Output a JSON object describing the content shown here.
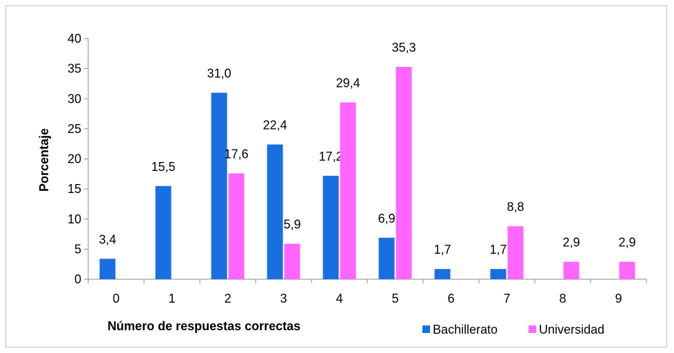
{
  "chart_data": {
    "type": "bar",
    "categories": [
      "0",
      "1",
      "2",
      "3",
      "4",
      "5",
      "6",
      "7",
      "8",
      "9"
    ],
    "series": [
      {
        "name": "Bachillerato",
        "color": "#1a6fe0",
        "values": [
          3.4,
          15.5,
          31.0,
          22.4,
          17.2,
          6.9,
          1.7,
          1.7,
          0,
          0
        ],
        "labels": [
          "3,4",
          "15,5",
          "31,0",
          "22,4",
          "17,2",
          "6,9",
          "1,7",
          "1,7",
          "",
          ""
        ]
      },
      {
        "name": "Universidad",
        "color": "#ff66ff",
        "values": [
          0,
          0,
          17.6,
          5.9,
          29.4,
          35.3,
          0,
          8.8,
          2.9,
          2.9
        ],
        "labels": [
          "",
          "",
          "17,6",
          "5,9",
          "29,4",
          "35,3",
          "",
          "8,8",
          "2,9",
          "2,9"
        ]
      }
    ],
    "ylim": [
      0,
      40
    ],
    "yticks": [
      "0",
      "5",
      "10",
      "15",
      "20",
      "25",
      "30",
      "35",
      "40"
    ],
    "ylabel": "Porcentaje",
    "xlabel": "Número de respuestas correctas",
    "legend_position": "bottom-right",
    "grid": false
  }
}
